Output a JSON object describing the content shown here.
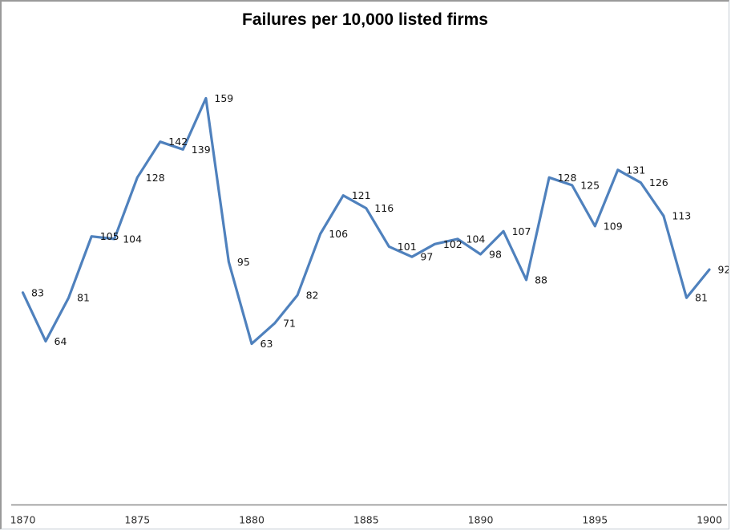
{
  "chart_data": {
    "type": "line",
    "title": "Failures per 10,000 listed firms",
    "x": [
      1870,
      1871,
      1872,
      1873,
      1874,
      1875,
      1876,
      1877,
      1878,
      1879,
      1880,
      1881,
      1882,
      1883,
      1884,
      1885,
      1886,
      1887,
      1888,
      1889,
      1890,
      1891,
      1892,
      1893,
      1894,
      1895,
      1896,
      1897,
      1898,
      1899,
      1900
    ],
    "values": [
      83,
      64,
      81,
      105,
      104,
      128,
      142,
      139,
      159,
      95,
      63,
      71,
      82,
      106,
      121,
      116,
      101,
      97,
      102,
      104,
      98,
      107,
      88,
      128,
      125,
      109,
      131,
      126,
      113,
      81,
      92
    ],
    "x_tick_labels": [
      "1870",
      "1875",
      "1880",
      "1885",
      "1890",
      "1895",
      "1900"
    ],
    "xlabel": "",
    "ylabel": "",
    "ylim": [
      0,
      180
    ],
    "grid": false,
    "legend": "none",
    "data_labels_visible": true,
    "line_color": "#4f81bd",
    "axis_line_color": "#8c8c8c",
    "label_color": "#141414",
    "tick_label_color": "#2e2e2e"
  }
}
